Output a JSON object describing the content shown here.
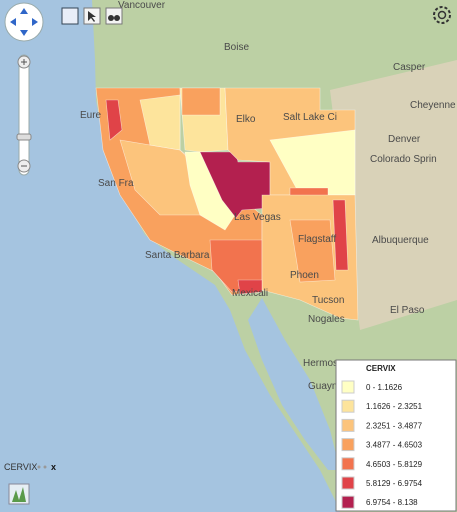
{
  "map": {
    "labels": [
      "Vancouver",
      "Boise",
      "Casper",
      "Cheyenne",
      "Denver",
      "Colorado Sprin",
      "Eure",
      "Elko",
      "Salt Lake Ci",
      "San Fra",
      "Las Vegas",
      "Flagstaff",
      "Santa Barbara",
      "Albuquerque",
      "Phoen",
      "Mexicali",
      "Tucson",
      "El Paso",
      "Nogales",
      "Hermos",
      "Guaym"
    ]
  },
  "legend": {
    "title": "CERVIX",
    "items": [
      {
        "label": "0 - 1.1626",
        "color": "#ffffc4"
      },
      {
        "label": "1.1626 - 2.3251",
        "color": "#fde49c"
      },
      {
        "label": "2.3251 - 3.4877",
        "color": "#fcc47c"
      },
      {
        "label": "3.4877 - 4.6503",
        "color": "#f9a15e"
      },
      {
        "label": "4.6503 - 5.8129",
        "color": "#f2734e"
      },
      {
        "label": "5.8129 - 6.9754",
        "color": "#e04348"
      },
      {
        "label": "6.9754 - 8.138",
        "color": "#b3204f"
      }
    ]
  },
  "layer_panel": {
    "name": "CERVIX",
    "close": "x"
  }
}
